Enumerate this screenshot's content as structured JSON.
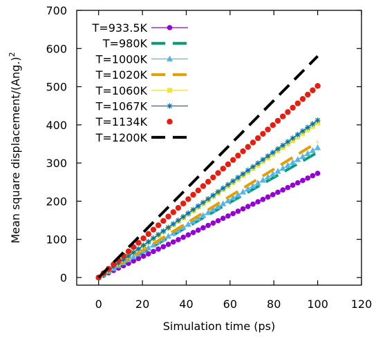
{
  "chart_data": {
    "type": "line",
    "xlabel": "Simulation time (ps)",
    "ylabel": "Mean square displacement/(Ang.)",
    "ylabel_superscript": "2",
    "xlim": [
      -10,
      120
    ],
    "ylim": [
      -20,
      700
    ],
    "xticks": [
      0,
      20,
      40,
      60,
      80,
      100,
      120
    ],
    "yticks": [
      0,
      100,
      200,
      300,
      400,
      500,
      600,
      700
    ],
    "grid": false,
    "legend_position": "top-left",
    "series": [
      {
        "name": "T=933.5K",
        "color": "#9400d3",
        "style": "line-circle",
        "x": [
          0,
          100
        ],
        "y": [
          0,
          273
        ]
      },
      {
        "name": "T=980K",
        "color": "#009e73",
        "style": "dashed",
        "x": [
          0,
          100
        ],
        "y": [
          0,
          328
        ]
      },
      {
        "name": "T=1000K",
        "color": "#56b4e9",
        "style": "line-triangle",
        "x": [
          0,
          100
        ],
        "y": [
          0,
          340
        ]
      },
      {
        "name": "T=1020K",
        "color": "#e69f00",
        "style": "dashed",
        "x": [
          0,
          100
        ],
        "y": [
          0,
          355
        ]
      },
      {
        "name": "T=1060K",
        "color": "#f0e442",
        "style": "line-square",
        "x": [
          0,
          100
        ],
        "y": [
          0,
          405
        ]
      },
      {
        "name": "T=1067K",
        "color": "#0072b2",
        "style": "line-star",
        "x": [
          0,
          100
        ],
        "y": [
          0,
          412
        ]
      },
      {
        "name": "T=1134K",
        "color": "#e51e10",
        "style": "circles",
        "x": [
          0,
          100
        ],
        "y": [
          0,
          502
        ]
      },
      {
        "name": "T=1200K",
        "color": "#000000",
        "style": "dashed",
        "x": [
          0,
          100
        ],
        "y": [
          0,
          580
        ]
      }
    ]
  }
}
